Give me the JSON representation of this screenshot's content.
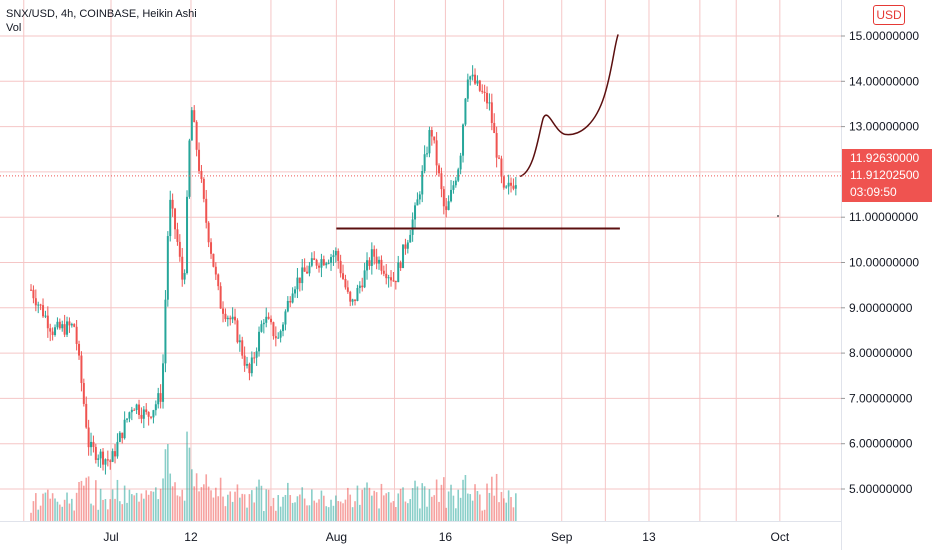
{
  "header": {
    "symbol_line": "SNX/USD, 4h, COINBASE, Heikin Ashi",
    "volume_label": "Vol",
    "currency_button": "USD"
  },
  "price_scale": {
    "ticks": [
      "15.00000000",
      "14.00000000",
      "13.00000000",
      "11.00000000",
      "10.00000000",
      "9.00000000",
      "8.00000000",
      "7.00000000",
      "6.00000000",
      "5.00000000"
    ],
    "last_price": "11.92630000",
    "current_price": "11.91202500",
    "countdown": "03:09:50"
  },
  "time_scale": {
    "ticks": [
      "Jul",
      "12",
      "Aug",
      "16",
      "Sep",
      "13",
      "Oct"
    ]
  },
  "colors": {
    "up": "#26a69a",
    "down": "#ef5350",
    "grid_red": "#f5c6c6",
    "drawing": "#5b0f0f",
    "price_tag": "#ef5350"
  },
  "chart_data": {
    "type": "candlestick",
    "chart_style": "Heikin Ashi",
    "interval": "4h",
    "exchange": "COINBASE",
    "pair": "SNX/USD",
    "ylim": [
      4.3,
      15.6
    ],
    "grid": true,
    "price_points": [
      {
        "date": "Jun 20",
        "price": 9.4
      },
      {
        "date": "Jun 23",
        "price": 8.5
      },
      {
        "date": "Jun 26",
        "price": 8.6
      },
      {
        "date": "Jun 28",
        "price": 5.9
      },
      {
        "date": "Jul 1",
        "price": 5.6
      },
      {
        "date": "Jul 4",
        "price": 6.9
      },
      {
        "date": "Jul 6",
        "price": 6.6
      },
      {
        "date": "Jul 8",
        "price": 7.1
      },
      {
        "date": "Jul 9",
        "price": 11.4
      },
      {
        "date": "Jul 10",
        "price": 10.6
      },
      {
        "date": "Jul 11",
        "price": 9.4
      },
      {
        "date": "Jul 12",
        "price": 13.5
      },
      {
        "date": "Jul 14",
        "price": 11.0
      },
      {
        "date": "Jul 16",
        "price": 9.1
      },
      {
        "date": "Jul 18",
        "price": 8.6
      },
      {
        "date": "Jul 20",
        "price": 7.5
      },
      {
        "date": "Jul 22",
        "price": 8.8
      },
      {
        "date": "Jul 24",
        "price": 8.3
      },
      {
        "date": "Jul 26",
        "price": 9.5
      },
      {
        "date": "Jul 29",
        "price": 10.0
      },
      {
        "date": "Aug 1",
        "price": 10.2
      },
      {
        "date": "Aug 3",
        "price": 9.0
      },
      {
        "date": "Aug 6",
        "price": 10.2
      },
      {
        "date": "Aug 9",
        "price": 9.6
      },
      {
        "date": "Aug 12",
        "price": 11.2
      },
      {
        "date": "Aug 14",
        "price": 13.0
      },
      {
        "date": "Aug 16",
        "price": 11.0
      },
      {
        "date": "Aug 18",
        "price": 12.3
      },
      {
        "date": "Aug 19",
        "price": 14.2
      },
      {
        "date": "Aug 22",
        "price": 13.5
      },
      {
        "date": "Aug 24",
        "price": 11.5
      },
      {
        "date": "Aug 26",
        "price": 11.9
      }
    ],
    "horizontal_line_level": 10.75,
    "volume_style": "histogram"
  }
}
